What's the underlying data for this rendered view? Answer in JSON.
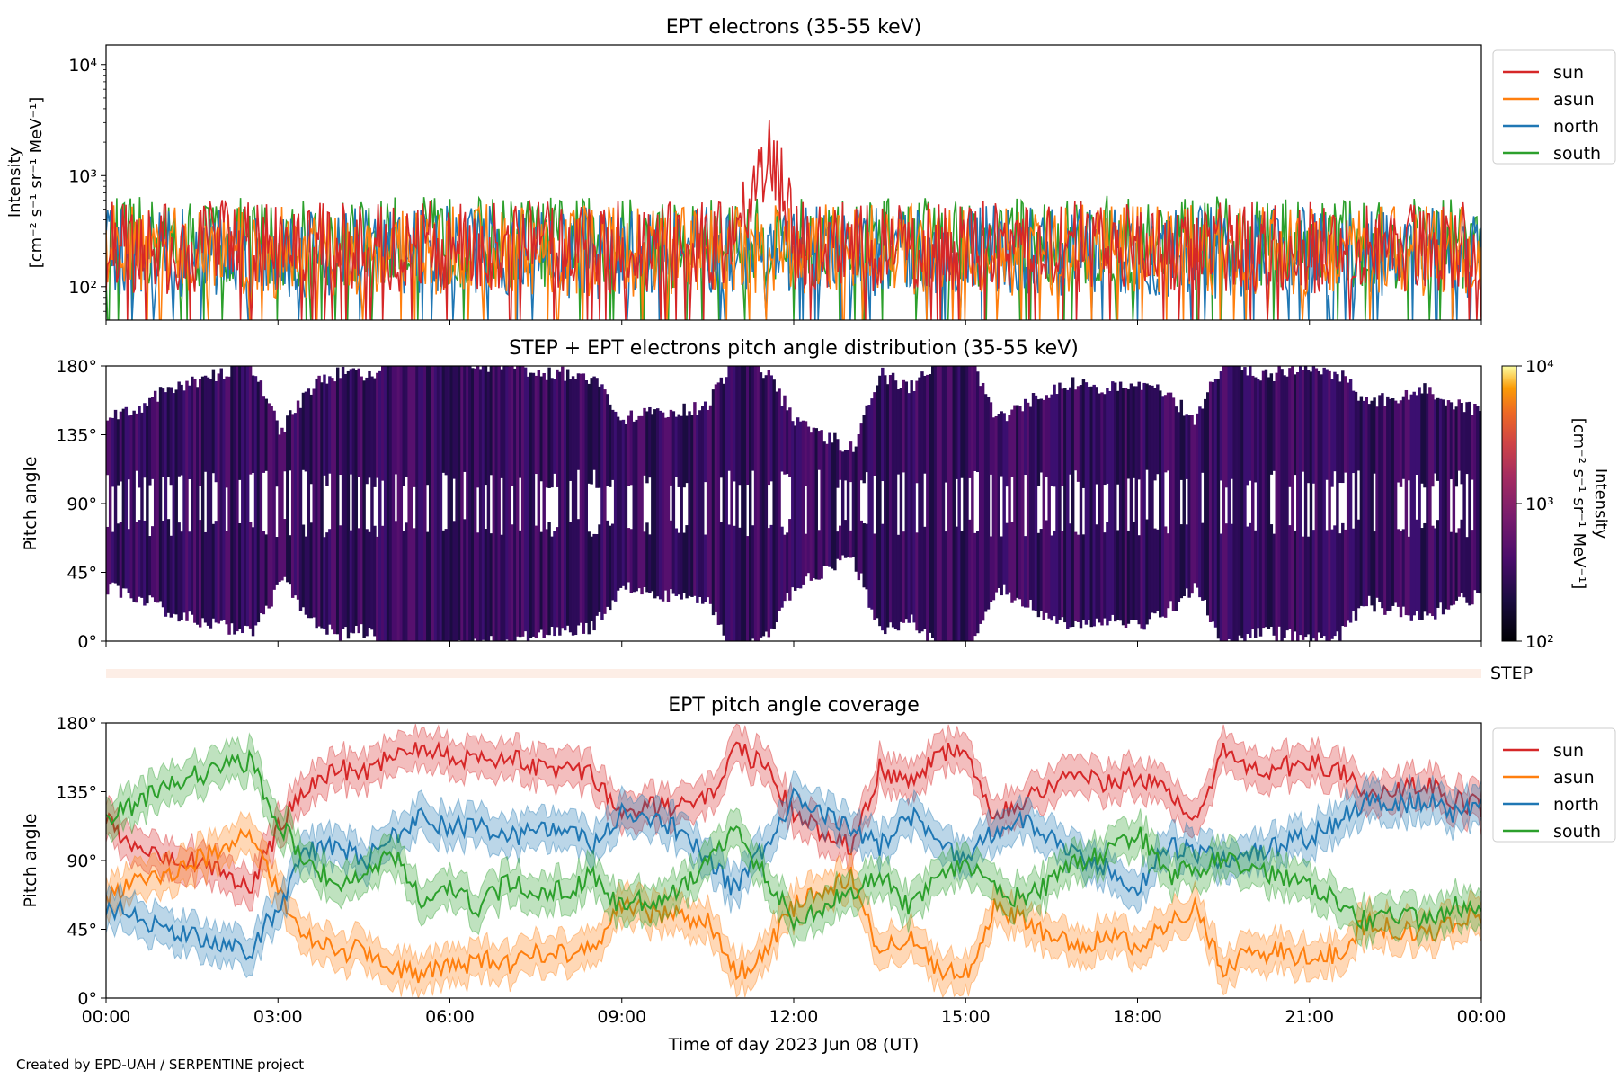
{
  "figure": {
    "credit": "Created by EPD-UAH / SERPENTINE project",
    "xlabel": "Time of day 2023 Jun 08 (UT)",
    "xticks": [
      "00:00",
      "03:00",
      "06:00",
      "09:00",
      "12:00",
      "15:00",
      "18:00",
      "21:00",
      "00:00"
    ]
  },
  "colors": {
    "sun": "#d62728",
    "asun": "#ff7f0e",
    "north": "#1f77b4",
    "south": "#2ca02c",
    "step_bar": "#fdeee6"
  },
  "chart_data": [
    {
      "id": "intensity",
      "type": "line",
      "title": "EPT electrons (35-55 keV)",
      "ylabel_line1": "Intensity",
      "ylabel_line2": "[cm⁻² s⁻¹ sr⁻¹ MeV⁻¹]",
      "yscale": "log",
      "ylim": [
        50,
        15000
      ],
      "yticks": [
        {
          "v": 100,
          "label": "10²"
        },
        {
          "v": 1000,
          "label": "10³"
        },
        {
          "v": 10000,
          "label": "10⁴"
        }
      ],
      "xlim_hours": [
        0,
        24
      ],
      "legend_position": "outside-right-top",
      "series": [
        {
          "name": "sun",
          "x": [
            0,
            1,
            2,
            3,
            4,
            5,
            6,
            7,
            8,
            9,
            10,
            11,
            11.6,
            12,
            13,
            14,
            15,
            16,
            17,
            18,
            19,
            20,
            21,
            22,
            23,
            24
          ],
          "y": [
            230,
            220,
            240,
            230,
            225,
            230,
            235,
            240,
            230,
            230,
            225,
            235,
            1300,
            240,
            230,
            235,
            230,
            225,
            230,
            235,
            230,
            230,
            225,
            230,
            235,
            230
          ]
        },
        {
          "name": "asun",
          "x": [
            0,
            3,
            6,
            9,
            12,
            15,
            18,
            21,
            24
          ],
          "y": [
            210,
            205,
            215,
            210,
            220,
            210,
            215,
            210,
            212
          ]
        },
        {
          "name": "north",
          "x": [
            0,
            3,
            6,
            9,
            12,
            15,
            18,
            21,
            24
          ],
          "y": [
            200,
            205,
            210,
            200,
            205,
            210,
            200,
            205,
            200
          ]
        },
        {
          "name": "south",
          "x": [
            0,
            3,
            6,
            9,
            12,
            15,
            18,
            21,
            24
          ],
          "y": [
            250,
            245,
            255,
            250,
            245,
            250,
            255,
            245,
            250
          ]
        }
      ]
    },
    {
      "id": "pad",
      "type": "heatmap",
      "title": "STEP + EPT electrons pitch angle distribution (35-55 keV)",
      "ylabel": "Pitch angle",
      "ylim": [
        0,
        180
      ],
      "yticks": [
        {
          "v": 0,
          "label": "0°"
        },
        {
          "v": 45,
          "label": "45°"
        },
        {
          "v": 90,
          "label": "90°"
        },
        {
          "v": 135,
          "label": "135°"
        },
        {
          "v": 180,
          "label": "180°"
        }
      ],
      "xlim_hours": [
        0,
        24
      ],
      "colorbar": {
        "scale": "log",
        "range": [
          100,
          10000
        ],
        "colormap": "inferno",
        "label_line1": "Intensity",
        "label_line2": "[cm⁻² s⁻¹ sr⁻¹ MeV⁻¹]",
        "ticks": [
          {
            "v": 100,
            "label": "10²"
          },
          {
            "v": 1000,
            "label": "10³"
          },
          {
            "v": 10000,
            "label": "10⁴"
          }
        ]
      },
      "typical_intensity": 220
    },
    {
      "id": "step",
      "type": "bar",
      "label": "STEP"
    },
    {
      "id": "coverage",
      "type": "line",
      "title": "EPT pitch angle coverage",
      "ylabel": "Pitch angle",
      "ylim": [
        0,
        180
      ],
      "yticks": [
        {
          "v": 0,
          "label": "0°"
        },
        {
          "v": 45,
          "label": "45°"
        },
        {
          "v": 90,
          "label": "90°"
        },
        {
          "v": 135,
          "label": "135°"
        },
        {
          "v": 180,
          "label": "180°"
        }
      ],
      "xlim_hours": [
        0,
        24
      ],
      "legend_position": "outside-right-top",
      "band_halfwidth_deg": 12,
      "series": [
        {
          "name": "sun",
          "x": [
            0,
            0.5,
            1,
            1.5,
            2,
            2.5,
            3,
            3.5,
            4,
            4.5,
            5,
            5.5,
            6,
            6.5,
            7,
            7.5,
            8,
            8.5,
            9,
            9.5,
            10,
            10.5,
            11,
            11.5,
            12,
            12.5,
            13,
            13.5,
            14,
            14.5,
            15,
            15.5,
            16,
            16.5,
            17,
            17.5,
            18,
            18.5,
            19,
            19.5,
            20,
            20.5,
            21,
            21.5,
            22,
            22.5,
            23,
            23.5,
            24
          ],
          "y": [
            115,
            100,
            95,
            90,
            85,
            70,
            110,
            140,
            150,
            148,
            160,
            165,
            160,
            155,
            158,
            150,
            150,
            145,
            120,
            125,
            125,
            130,
            165,
            150,
            120,
            110,
            100,
            150,
            140,
            160,
            165,
            120,
            130,
            140,
            145,
            140,
            145,
            135,
            120,
            160,
            150,
            150,
            155,
            150,
            130,
            135,
            140,
            130,
            125
          ]
        },
        {
          "name": "asun",
          "x": [
            0,
            0.5,
            1,
            1.5,
            2,
            2.5,
            3,
            3.5,
            4,
            4.5,
            5,
            5.5,
            6,
            6.5,
            7,
            7.5,
            8,
            8.5,
            9,
            9.5,
            10,
            10.5,
            11,
            11.5,
            12,
            12.5,
            13,
            13.5,
            14,
            14.5,
            15,
            15.5,
            16,
            16.5,
            17,
            17.5,
            18,
            18.5,
            19,
            19.5,
            20,
            20.5,
            21,
            21.5,
            22,
            22.5,
            23,
            23.5,
            24
          ],
          "y": [
            65,
            75,
            80,
            90,
            95,
            110,
            70,
            40,
            30,
            32,
            20,
            15,
            20,
            25,
            22,
            30,
            30,
            35,
            60,
            55,
            55,
            50,
            15,
            30,
            60,
            70,
            80,
            30,
            40,
            20,
            15,
            60,
            50,
            40,
            35,
            40,
            35,
            45,
            60,
            20,
            30,
            30,
            25,
            30,
            50,
            45,
            40,
            50,
            55
          ]
        },
        {
          "name": "north",
          "x": [
            0,
            0.5,
            1,
            1.5,
            2,
            2.5,
            3,
            3.5,
            4,
            4.5,
            5,
            5.5,
            6,
            6.5,
            7,
            7.5,
            8,
            8.5,
            9,
            9.5,
            10,
            10.5,
            11,
            11.5,
            12,
            12.5,
            13,
            13.5,
            14,
            14.5,
            15,
            15.5,
            16,
            16.5,
            17,
            17.5,
            18,
            18.5,
            19,
            19.5,
            20,
            20.5,
            21,
            21.5,
            22,
            22.5,
            23,
            23.5,
            24
          ],
          "y": [
            60,
            55,
            45,
            40,
            35,
            30,
            60,
            95,
            100,
            90,
            105,
            120,
            110,
            115,
            105,
            110,
            110,
            100,
            120,
            115,
            110,
            90,
            70,
            100,
            130,
            120,
            110,
            100,
            120,
            105,
            90,
            110,
            115,
            105,
            90,
            85,
            70,
            100,
            95,
            90,
            95,
            100,
            105,
            115,
            130,
            125,
            130,
            120,
            125
          ]
        },
        {
          "name": "south",
          "x": [
            0,
            0.5,
            1,
            1.5,
            2,
            2.5,
            3,
            3.5,
            4,
            4.5,
            5,
            5.5,
            6,
            6.5,
            7,
            7.5,
            8,
            8.5,
            9,
            9.5,
            10,
            10.5,
            11,
            11.5,
            12,
            12.5,
            13,
            13.5,
            14,
            14.5,
            15,
            15.5,
            16,
            16.5,
            17,
            17.5,
            18,
            18.5,
            19,
            19.5,
            20,
            20.5,
            21,
            21.5,
            22,
            22.5,
            23,
            23.5,
            24
          ],
          "y": [
            120,
            125,
            140,
            145,
            150,
            155,
            115,
            90,
            75,
            80,
            95,
            65,
            70,
            60,
            75,
            70,
            70,
            80,
            60,
            65,
            70,
            90,
            110,
            80,
            50,
            60,
            70,
            80,
            60,
            75,
            90,
            70,
            65,
            75,
            90,
            95,
            110,
            80,
            85,
            90,
            85,
            80,
            75,
            65,
            50,
            55,
            50,
            60,
            55
          ]
        }
      ]
    }
  ]
}
